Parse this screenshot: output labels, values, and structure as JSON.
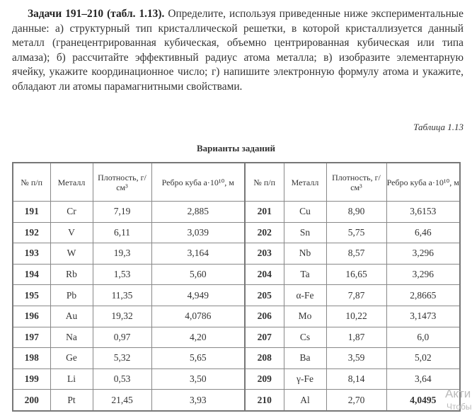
{
  "intro": {
    "bold": "Задачи 191–210 (табл. 1.13).",
    "text": " Определите, используя приведенные ниже экспериментальные данные: а) структурный тип кристаллической решетки, в которой кристаллизуется данный металл (гранецентрированная кубическая, объемно центрированная кубическая или типа алмаза); б) рассчитайте эффективный радиус атома металла; в) изобразите элементарную ячейку, укажите координационное число; г) напишите электронную формулу атома и укажите, обладают ли атомы парамагнитными свойствами."
  },
  "table_number": "Таблица 1.13",
  "table_title": "Варианты заданий",
  "headers": [
    "№ п/п",
    "Металл",
    "Плотность, г/см³",
    "Ребро куба a·10¹⁰, м",
    "№ п/п",
    "Металл",
    "Плотность, г/см³",
    "Ребро куба a·10¹⁰, м"
  ],
  "rows": [
    [
      "191",
      "Cr",
      "7,19",
      "2,885",
      "201",
      "Cu",
      "8,90",
      "3,6153"
    ],
    [
      "192",
      "V",
      "6,11",
      "3,039",
      "202",
      "Sn",
      "5,75",
      "6,46"
    ],
    [
      "193",
      "W",
      "19,3",
      "3,164",
      "203",
      "Nb",
      "8,57",
      "3,296"
    ],
    [
      "194",
      "Rb",
      "1,53",
      "5,60",
      "204",
      "Ta",
      "16,65",
      "3,296"
    ],
    [
      "195",
      "Pb",
      "11,35",
      "4,949",
      "205",
      "α-Fe",
      "7,87",
      "2,8665"
    ],
    [
      "196",
      "Au",
      "19,32",
      "4,0786",
      "206",
      "Mo",
      "10,22",
      "3,1473"
    ],
    [
      "197",
      "Na",
      "0,97",
      "4,20",
      "207",
      "Cs",
      "1,87",
      "6,0"
    ],
    [
      "198",
      "Ge",
      "5,32",
      "5,65",
      "208",
      "Ba",
      "3,59",
      "5,02"
    ],
    [
      "199",
      "Li",
      "0,53",
      "3,50",
      "209",
      "γ-Fe",
      "8,14",
      "3,64"
    ],
    [
      "200",
      "Pt",
      "21,45",
      "3,93",
      "210",
      "Al",
      "2,70",
      "4,0495"
    ]
  ],
  "watermark": {
    "line1": "Акти",
    "line2": "Чтобы"
  }
}
